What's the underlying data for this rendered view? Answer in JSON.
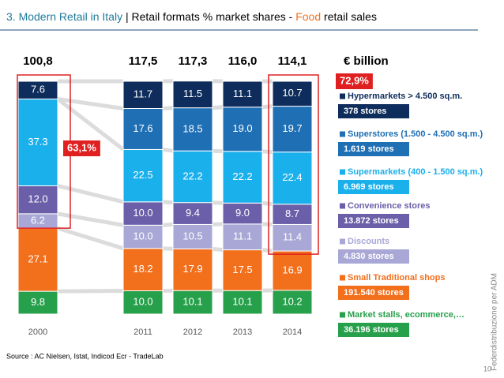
{
  "chart_data": {
    "type": "bar",
    "stacked": true,
    "title": {
      "section": "3. Modern Retail in Italy",
      "main": " | Retail formats % market shares - ",
      "highlight": "Food",
      "end": " retail sales"
    },
    "categories": [
      "2000",
      "2011",
      "2012",
      "2013",
      "2014"
    ],
    "ylim": [
      0,
      100
    ],
    "totals": {
      "values": [
        100.8,
        117.5,
        117.3,
        116.0,
        114.1
      ],
      "value_labels": [
        "100,8",
        "117,5",
        "117,3",
        "116,0",
        "114,1"
      ],
      "unit": "€ billion"
    },
    "series": [
      {
        "name": "Market stalls, ecommerce,…",
        "stores": "36.196 stores",
        "color": "#27a04b",
        "values": [
          9.8,
          10.0,
          10.1,
          10.1,
          10.2
        ],
        "value_labels": [
          "9.8",
          "10.0",
          "10.1",
          "10.1",
          "10.2"
        ]
      },
      {
        "name": "Small Traditional shops",
        "stores": "191.540 stores",
        "color": "#f26f1c",
        "values": [
          27.1,
          18.2,
          17.9,
          17.5,
          16.9
        ]
      },
      {
        "name": "Discounts",
        "stores": "4.830 stores",
        "color": "#a9a7d6",
        "values": [
          6.2,
          10.0,
          10.5,
          11.1,
          11.4
        ],
        "value_labels": [
          "6.2",
          "10.0",
          "10.5",
          "11.1",
          "11.4"
        ]
      },
      {
        "name": "Convenience stores",
        "stores": "13.872 stores",
        "color": "#6a5fa8",
        "values": [
          12.0,
          10.0,
          9.4,
          9.0,
          8.7
        ],
        "value_labels": [
          "12.0",
          "10.0",
          "9.4",
          "9.0",
          "8.7"
        ]
      },
      {
        "name": "Supermarkets (400 - 1.500 sq.m.)",
        "stores": "6.969 stores",
        "color": "#1ab0ec",
        "values": [
          37.3,
          22.5,
          22.2,
          22.2,
          22.4
        ]
      },
      {
        "name": "Superstores (1.500 - 4.500 sq.m.)",
        "stores": "1.619 stores",
        "color": "#1f6fb5",
        "values": [
          null,
          17.6,
          18.5,
          19.0,
          19.7
        ],
        "value_labels": [
          null,
          "17.6",
          "18.5",
          "19.0",
          "19.7"
        ]
      },
      {
        "name": "Hypermarkets > 4.500 sq.m.",
        "stores": "378 stores",
        "color": "#0f2d5c",
        "values": [
          7.6,
          11.7,
          11.5,
          11.1,
          10.7
        ]
      }
    ],
    "annotations": [
      "63,1%",
      "72,9%"
    ],
    "source": "Source : AC Nielsen, Istat, Indicod Ecr - TradeLab",
    "side_note": "Federdistribuzione per ADM",
    "page_number": "10"
  }
}
